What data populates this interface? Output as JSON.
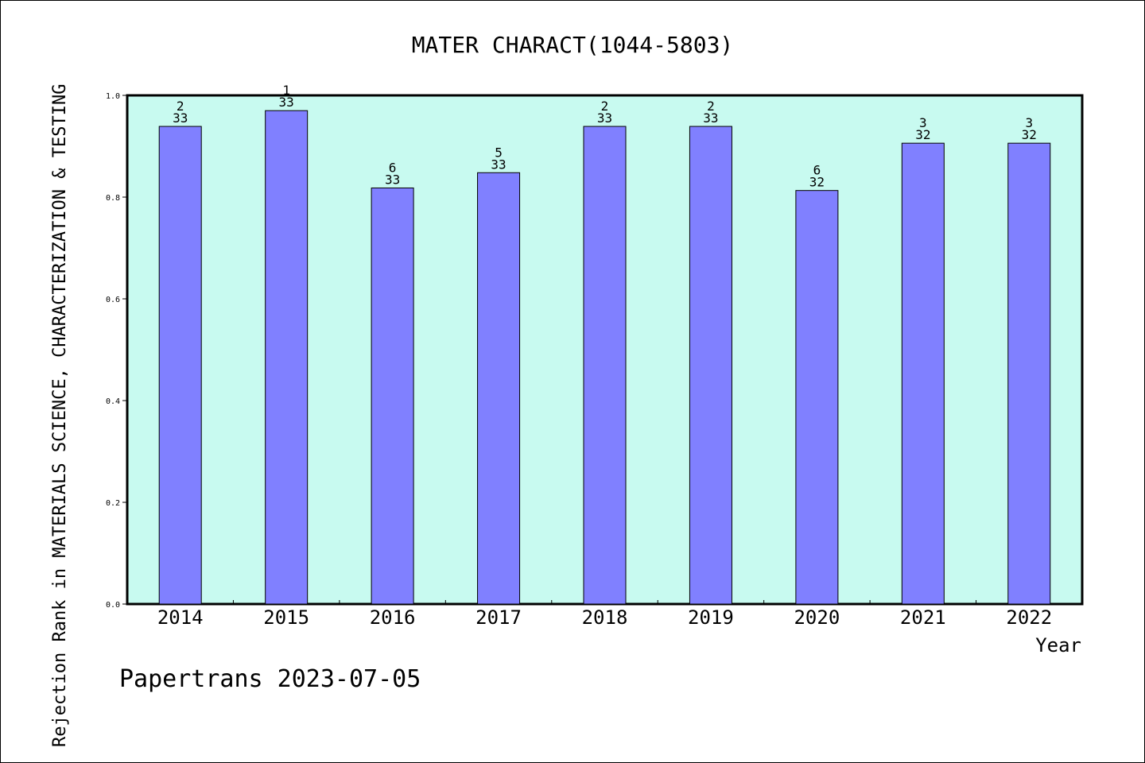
{
  "chart_data": {
    "type": "bar",
    "title": "MATER CHARACT(1044-5803)",
    "xlabel": "Year",
    "ylabel": "Rejection Rank in MATERIALS SCIENCE, CHARACTERIZATION & TESTING",
    "categories": [
      "2014",
      "2015",
      "2016",
      "2017",
      "2018",
      "2019",
      "2020",
      "2021",
      "2022"
    ],
    "values": [
      0.939,
      0.97,
      0.818,
      0.848,
      0.939,
      0.939,
      0.813,
      0.906,
      0.906
    ],
    "rank": [
      "2",
      "1",
      "6",
      "5",
      "2",
      "2",
      "6",
      "3",
      "3"
    ],
    "total": [
      "33",
      "33",
      "33",
      "33",
      "33",
      "33",
      "32",
      "32",
      "32"
    ],
    "ylim": [
      0,
      1.0
    ],
    "yticks": [
      "0.0",
      "0.2",
      "0.4",
      "0.6",
      "0.8",
      "1.0"
    ],
    "grid": false,
    "colors": {
      "plot_bg": "#c8faf0",
      "bar": "#8080ff",
      "bar_edge": "#000000"
    }
  },
  "footer": "Papertrans 2023-07-05"
}
